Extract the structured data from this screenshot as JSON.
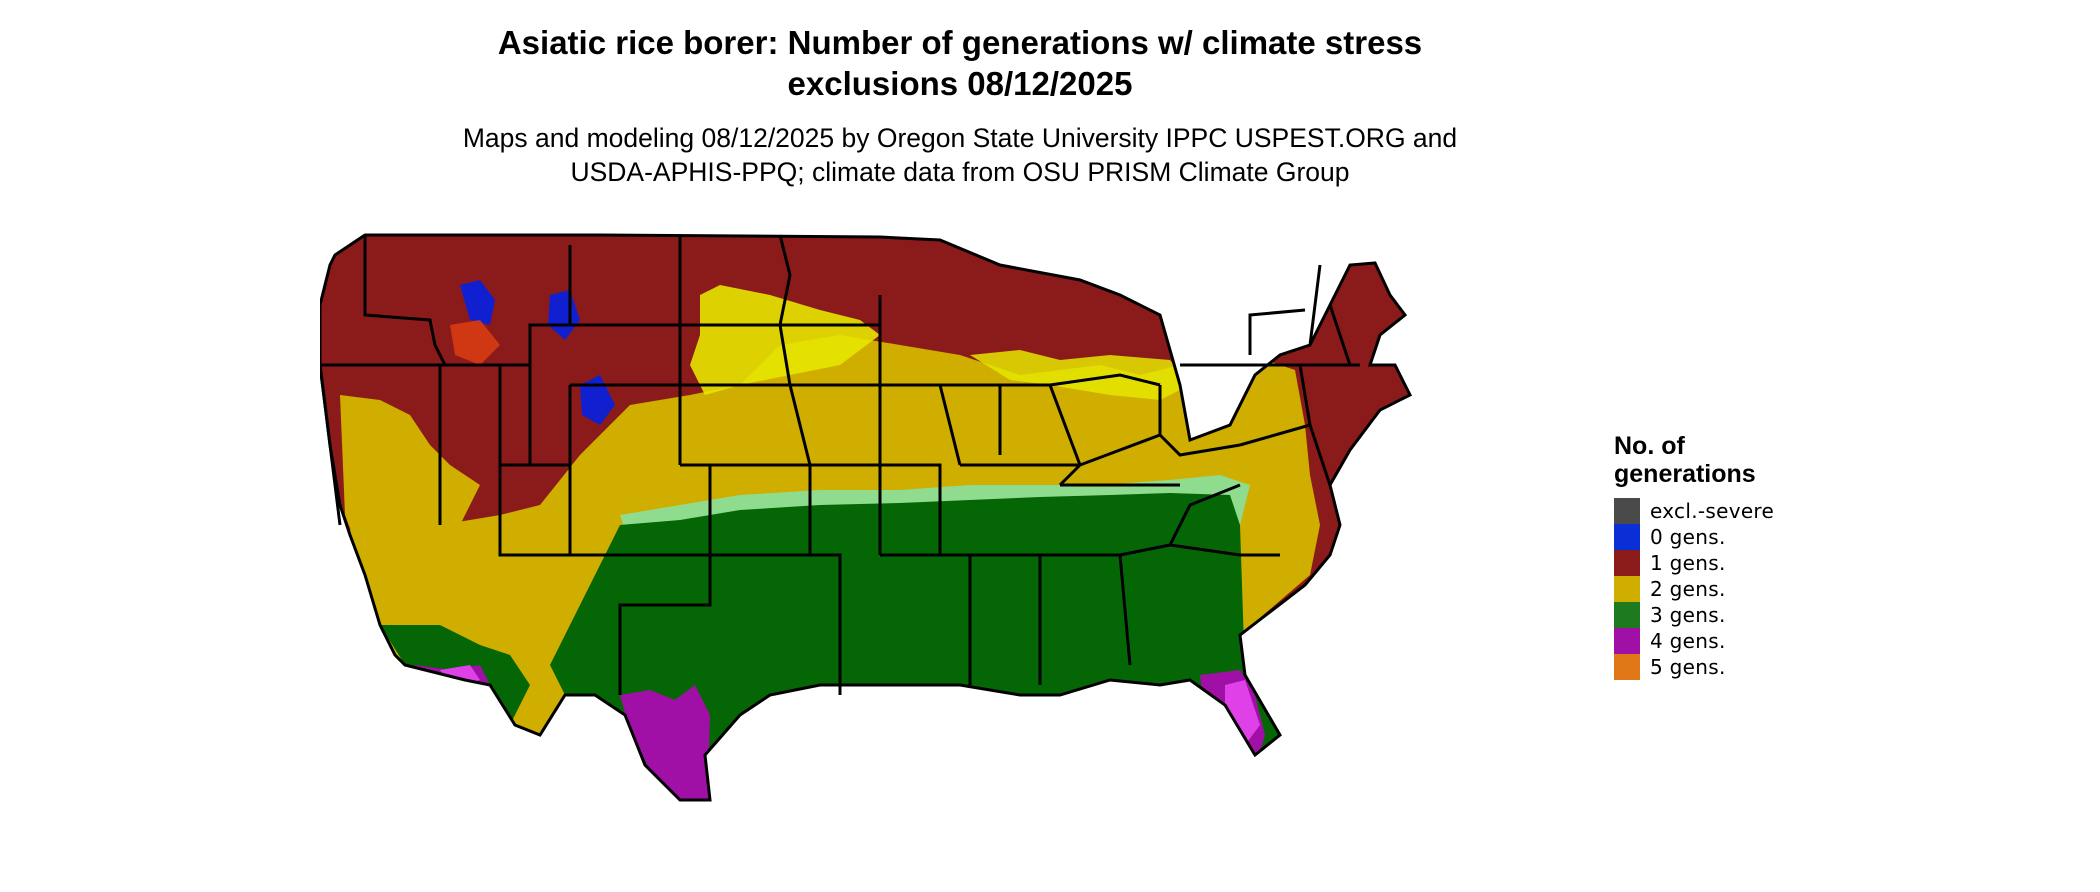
{
  "map": {
    "title_line1": "Asiatic rice borer: Number of generations w/ climate stress",
    "title_line2": "exclusions 08/12/2025",
    "subtitle_line1": "Maps and modeling 08/12/2025 by Oregon State University IPPC USPEST.ORG and",
    "subtitle_line2": "USDA-APHIS-PPQ; climate data from OSU PRISM Climate Group"
  },
  "legend": {
    "title_line1": "No. of",
    "title_line2": "generations",
    "items": [
      {
        "label": "excl.-severe",
        "color": "#4a4a4a"
      },
      {
        "label": "0 gens.",
        "color": "#0a2fd6"
      },
      {
        "label": "1 gens.",
        "color": "#8b1a1a"
      },
      {
        "label": "2 gens.",
        "color": "#cfae00"
      },
      {
        "label": "3 gens.",
        "color": "#1e7a1e"
      },
      {
        "label": "4 gens.",
        "color": "#a010a6"
      },
      {
        "label": "5 gens.",
        "color": "#e07818"
      }
    ]
  },
  "palette": {
    "gen1": "#8b1a1a",
    "gen2": "#cfae00",
    "gen2_light": "#e5e600",
    "gen3": "#056605",
    "gen3_light": "#8fdc8f",
    "gen4": "#a010a6",
    "gen4_light": "#e040e8",
    "gen0": "#1020d0",
    "gen1_light": "#e04010",
    "borders": "#000000"
  }
}
